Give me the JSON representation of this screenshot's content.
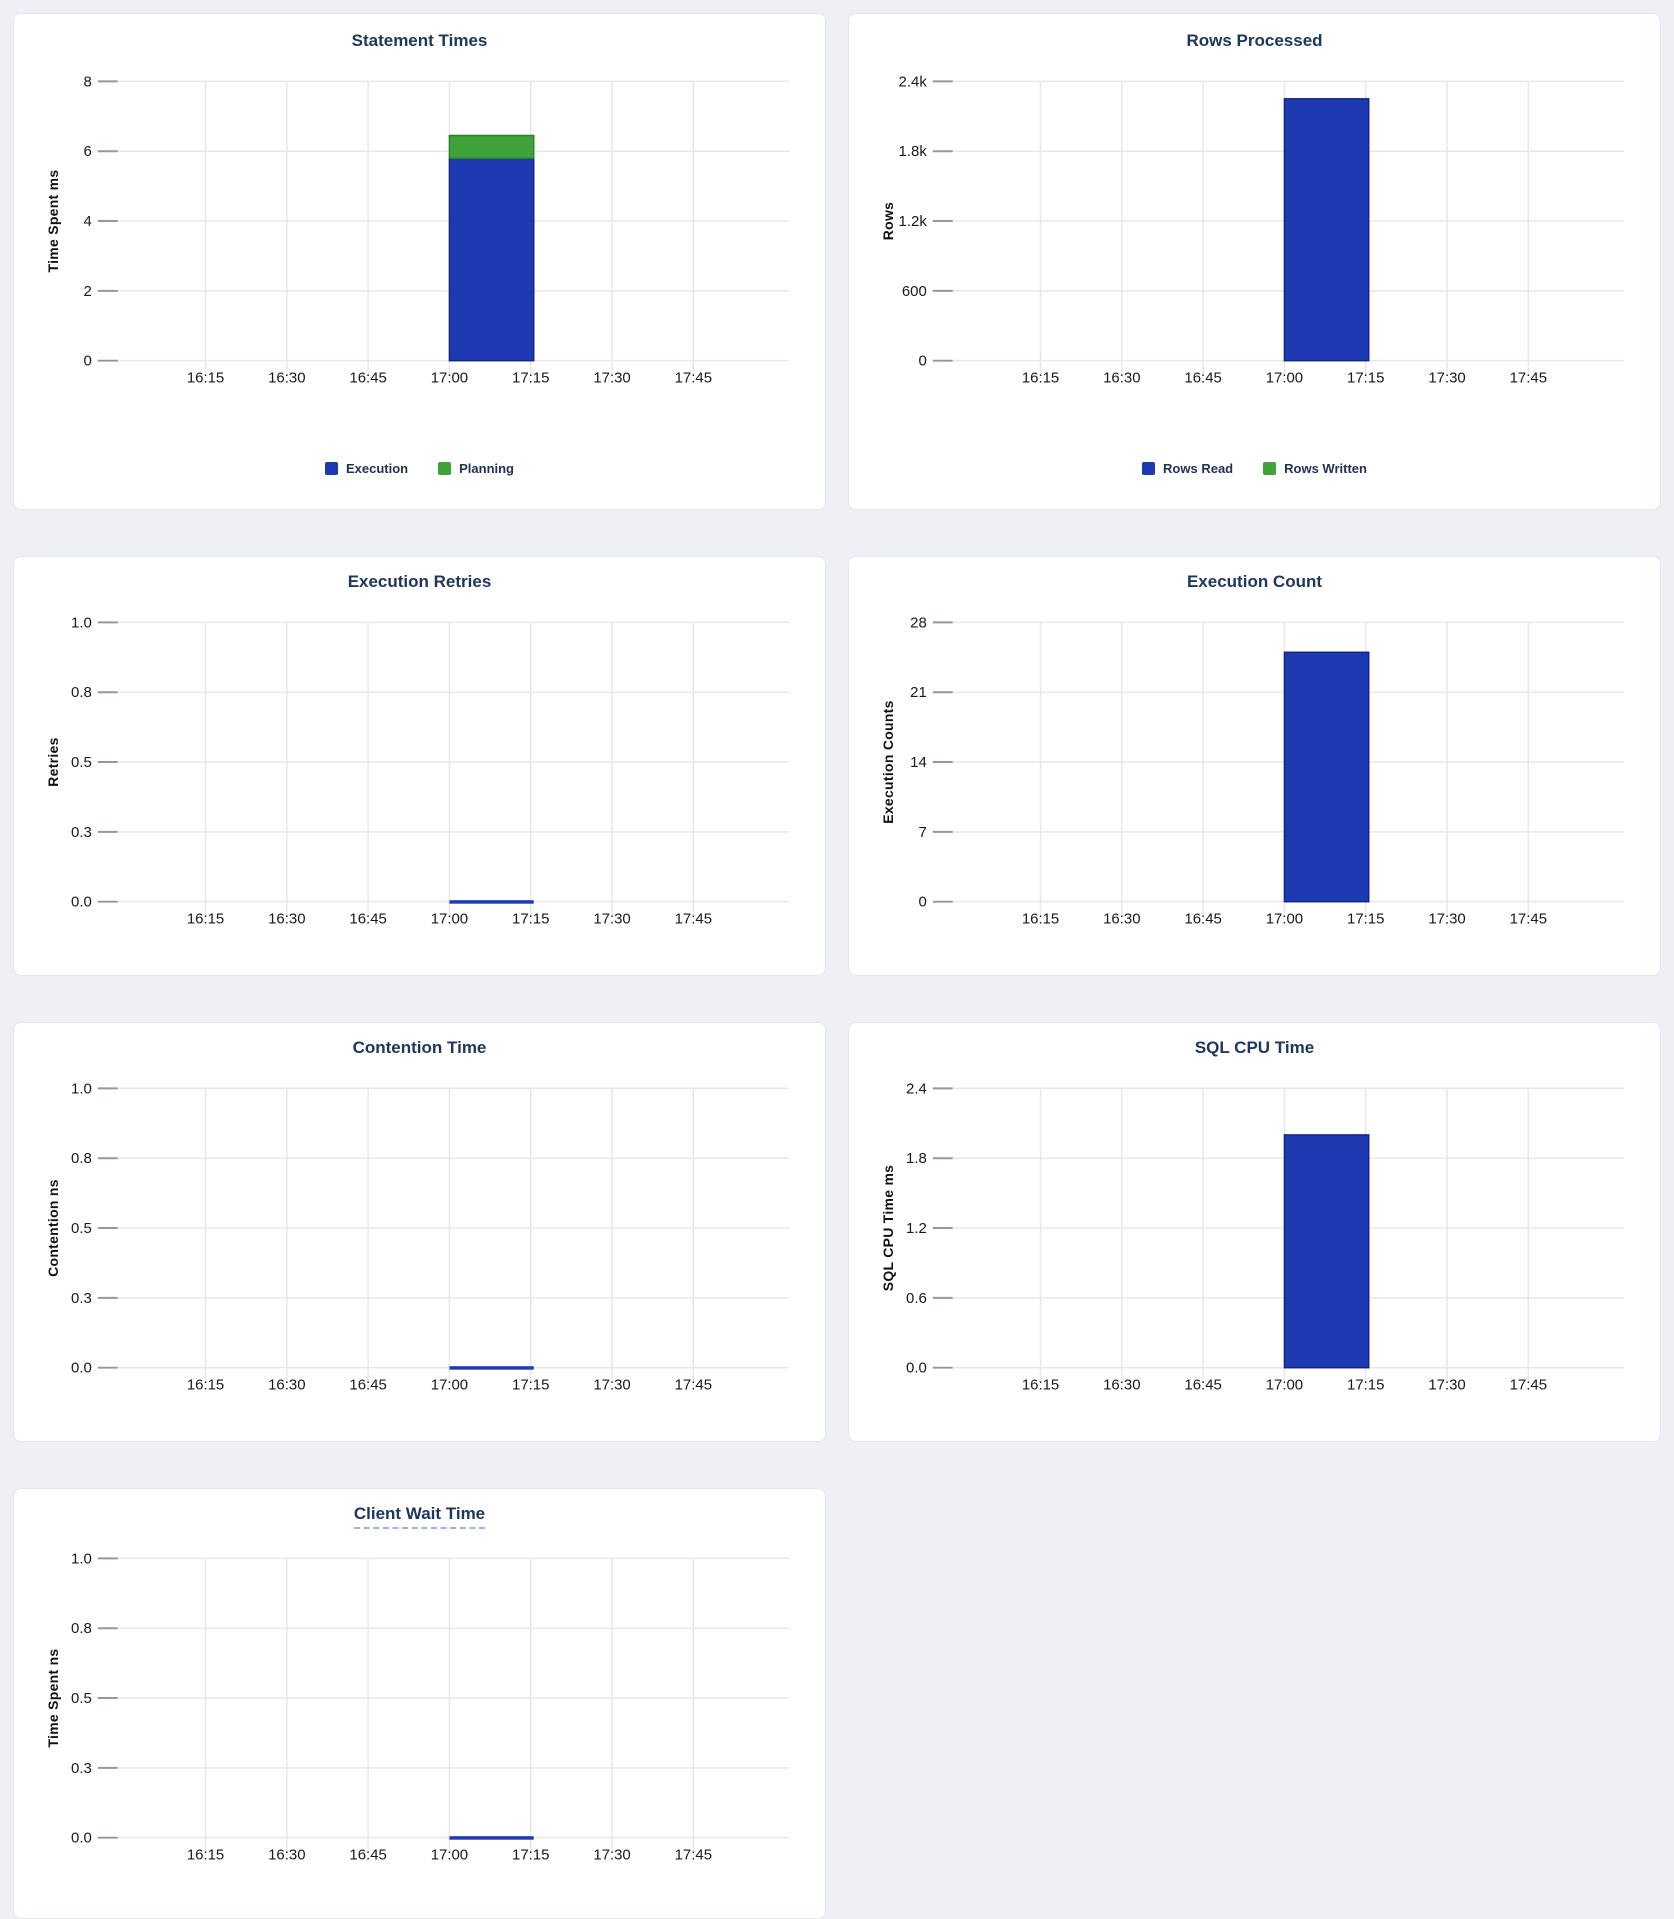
{
  "page": {
    "background": "#edf1f5",
    "card_background": "#ffffff",
    "title_color": "#20375c",
    "accent_blue": "#1d3ab3",
    "accent_green": "#3fa33a"
  },
  "chart_data": [
    {
      "type": "bar",
      "title": "Statement Times",
      "ylabel": "Time Spent ms",
      "ymax": 8,
      "ylim": [
        0,
        8
      ],
      "yticks": [
        "0",
        "2",
        "4",
        "6",
        "8"
      ],
      "xticks": [
        "16:15",
        "16:30",
        "16:45",
        "17:00",
        "17:15",
        "17:30",
        "17:45"
      ],
      "x_interval": [
        "17:00",
        "17:15"
      ],
      "stacked": true,
      "legend_position": "bottom",
      "grid": true,
      "series": [
        {
          "name": "Execution",
          "value": 5.8,
          "color": "#1d3ab3",
          "stroke": "#15267f"
        },
        {
          "name": "Planning",
          "value": 0.65,
          "color": "#3fa33a",
          "stroke": "#2e8429"
        }
      ]
    },
    {
      "type": "bar",
      "title": "Rows Processed",
      "ylabel": "Rows",
      "ymax": 2400,
      "ylim": [
        0,
        2400
      ],
      "yticks": [
        "0",
        "600",
        "1.2k",
        "1.8k",
        "2.4k"
      ],
      "xticks": [
        "16:15",
        "16:30",
        "16:45",
        "17:00",
        "17:15",
        "17:30",
        "17:45"
      ],
      "x_interval": [
        "17:00",
        "17:15"
      ],
      "stacked": true,
      "legend_position": "bottom",
      "grid": true,
      "series": [
        {
          "name": "Rows Read",
          "value": 2250,
          "color": "#1d3ab3",
          "stroke": "#15267f"
        },
        {
          "name": "Rows Written",
          "value": 0,
          "color": "#3fa33a",
          "stroke": "#2e8429"
        }
      ]
    },
    {
      "type": "bar",
      "title": "Execution Retries",
      "ylabel": "Retries",
      "ymax": 1,
      "ylim": [
        0,
        1
      ],
      "yticks": [
        "0.0",
        "0.3",
        "0.5",
        "0.8",
        "1.0"
      ],
      "xticks": [
        "16:15",
        "16:30",
        "16:45",
        "17:00",
        "17:15",
        "17:30",
        "17:45"
      ],
      "x_interval": [
        "17:00",
        "17:15"
      ],
      "stacked": false,
      "legend_position": "none",
      "grid": true,
      "series": [
        {
          "value": 0,
          "color": "#1d3ab3",
          "stroke": "#15267f"
        }
      ]
    },
    {
      "type": "bar",
      "title": "Execution Count",
      "ylabel": "Execution Counts",
      "ymax": 28,
      "ylim": [
        0,
        28
      ],
      "yticks": [
        "0",
        "7",
        "14",
        "21",
        "28"
      ],
      "xticks": [
        "16:15",
        "16:30",
        "16:45",
        "17:00",
        "17:15",
        "17:30",
        "17:45"
      ],
      "x_interval": [
        "17:00",
        "17:15"
      ],
      "stacked": false,
      "legend_position": "none",
      "grid": true,
      "series": [
        {
          "value": 25,
          "color": "#1d3ab3",
          "stroke": "#15267f"
        }
      ]
    },
    {
      "type": "bar",
      "title": "Contention Time",
      "ylabel": "Contention ns",
      "ymax": 1,
      "ylim": [
        0,
        1
      ],
      "yticks": [
        "0.0",
        "0.3",
        "0.5",
        "0.8",
        "1.0"
      ],
      "xticks": [
        "16:15",
        "16:30",
        "16:45",
        "17:00",
        "17:15",
        "17:30",
        "17:45"
      ],
      "x_interval": [
        "17:00",
        "17:15"
      ],
      "stacked": false,
      "legend_position": "none",
      "grid": true,
      "series": [
        {
          "value": 0,
          "color": "#1d3ab3",
          "stroke": "#15267f"
        }
      ]
    },
    {
      "type": "bar",
      "title": "SQL CPU Time",
      "ylabel": "SQL CPU Time ms",
      "ymax": 2.4,
      "ylim": [
        0,
        2.4
      ],
      "yticks": [
        "0.0",
        "0.6",
        "1.2",
        "1.8",
        "2.4"
      ],
      "xticks": [
        "16:15",
        "16:30",
        "16:45",
        "17:00",
        "17:15",
        "17:30",
        "17:45"
      ],
      "x_interval": [
        "17:00",
        "17:15"
      ],
      "stacked": false,
      "legend_position": "none",
      "grid": true,
      "series": [
        {
          "value": 2.0,
          "color": "#1d3ab3",
          "stroke": "#15267f"
        }
      ]
    },
    {
      "type": "bar",
      "title": "Client Wait Time",
      "title_has_tooltip_underline": true,
      "ylabel": "Time Spent ns",
      "ymax": 1,
      "ylim": [
        0,
        1
      ],
      "yticks": [
        "0.0",
        "0.3",
        "0.5",
        "0.8",
        "1.0"
      ],
      "xticks": [
        "16:15",
        "16:30",
        "16:45",
        "17:00",
        "17:15",
        "17:30",
        "17:45"
      ],
      "x_interval": [
        "17:00",
        "17:15"
      ],
      "stacked": false,
      "legend_position": "none",
      "grid": true,
      "series": [
        {
          "value": 0,
          "color": "#1d3ab3",
          "stroke": "#15267f"
        }
      ]
    }
  ]
}
